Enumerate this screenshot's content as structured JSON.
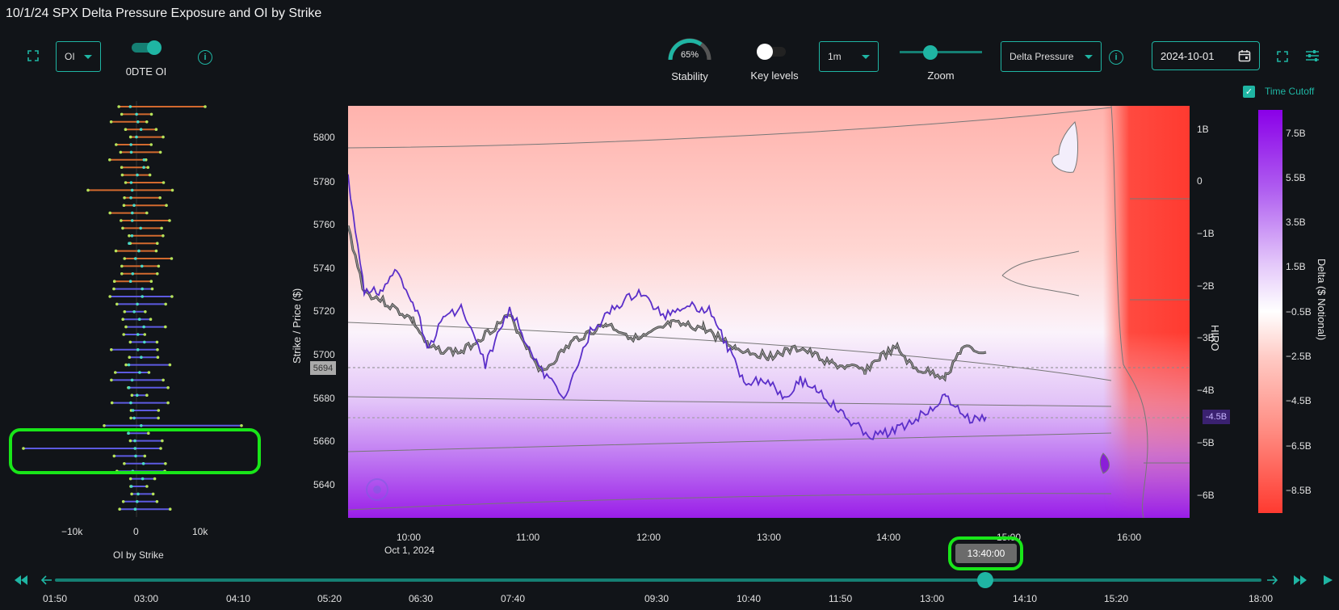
{
  "title": "10/1/24 SPX Delta Pressure Exposure and OI by Strike",
  "toolbar_left": {
    "oi_select": "OI",
    "dte_toggle_label": "0DTE OI"
  },
  "toolbar_right": {
    "stability_value": "65%",
    "stability_label": "Stability",
    "key_levels_label": "Key levels",
    "interval_select": "1m",
    "zoom_label": "Zoom",
    "zoom_level": 0.35,
    "mode_select": "Delta Pressure",
    "date_value": "2024-10-01",
    "time_cutoff_label": "Time Cutoff"
  },
  "oi_chart": {
    "xlabel": "OI by Strike",
    "x_ticks": [
      "−10k",
      "0",
      "10k"
    ]
  },
  "main_chart": {
    "ylabel": "Strike / Price ($)",
    "y_ticks": [
      "5800",
      "5780",
      "5760",
      "5740",
      "5720",
      "5700",
      "5680",
      "5660",
      "5640"
    ],
    "price_marker": "5694",
    "x_ticks": [
      "10:00",
      "11:00",
      "12:00",
      "13:00",
      "14:00",
      "15:00",
      "16:00"
    ],
    "date_label": "Oct 1, 2024",
    "hiro_label": "HIRO",
    "hiro_ticks": [
      "1B",
      "0",
      "−1B",
      "−2B",
      "−3B",
      "−4B",
      "−5B",
      "−6B"
    ],
    "hiro_marker": "-4.5B",
    "colorbar_label": "Delta ($ Notional)",
    "colorbar_ticks": [
      "7.5B",
      "5.5B",
      "3.5B",
      "1.5B",
      "−0.5B",
      "−2.5B",
      "−4.5B",
      "−6.5B",
      "−8.5B"
    ]
  },
  "timeline": {
    "tooltip": "13:40:00",
    "ticks": [
      "01:50",
      "03:00",
      "04:10",
      "05:20",
      "06:30",
      "07:40",
      "09:30",
      "10:40",
      "11:50",
      "13:00",
      "14:10",
      "15:20",
      "18:00"
    ]
  },
  "colors": {
    "accent": "#1fb5a3",
    "highlight": "#19e619",
    "hiro_line": "#5b2fc9"
  }
}
